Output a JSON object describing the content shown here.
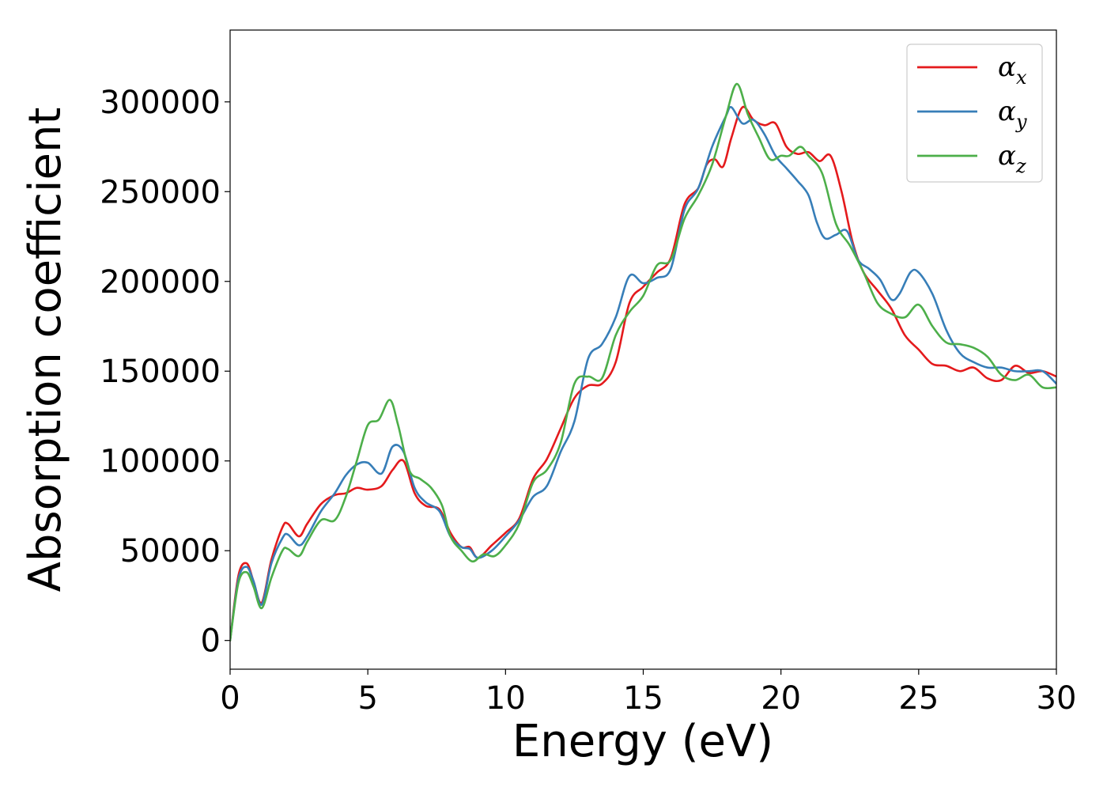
{
  "chart_data": {
    "type": "line",
    "title": "",
    "xlabel": "Energy (eV)",
    "ylabel": "Absorption coefficient",
    "xlim": [
      0,
      30
    ],
    "ylim": [
      -16000,
      340000
    ],
    "xticks": [
      0,
      5,
      10,
      15,
      20,
      25,
      30
    ],
    "yticks": [
      0,
      50000,
      100000,
      150000,
      200000,
      250000,
      300000
    ],
    "grid": false,
    "legend_position": "top-right",
    "series": [
      {
        "name": "α_x",
        "legend_base": "α",
        "legend_sub": "x",
        "color": "#e41a1c",
        "x": [
          0,
          0.3,
          0.6,
          0.85,
          1.15,
          1.5,
          1.9,
          2.1,
          2.5,
          2.8,
          3.3,
          3.8,
          4.2,
          4.6,
          5.0,
          5.5,
          5.9,
          6.3,
          6.7,
          7.1,
          7.6,
          8.0,
          8.4,
          8.7,
          9.0,
          9.5,
          10.0,
          10.5,
          11.0,
          11.5,
          12.0,
          12.5,
          13.0,
          13.5,
          14.0,
          14.5,
          15.0,
          15.5,
          16.0,
          16.5,
          17.0,
          17.3,
          17.6,
          17.9,
          18.2,
          18.6,
          19.0,
          19.4,
          19.8,
          20.2,
          20.6,
          21.0,
          21.4,
          21.8,
          22.2,
          22.6,
          23.0,
          23.5,
          24.0,
          24.5,
          25.0,
          25.5,
          26.0,
          26.5,
          27.0,
          27.5,
          28.0,
          28.5,
          29.0,
          29.5,
          30.0
        ],
        "y": [
          0,
          36000,
          43000,
          33000,
          21000,
          45000,
          63000,
          65000,
          58000,
          65000,
          76000,
          81000,
          82000,
          85000,
          84000,
          86000,
          95000,
          100000,
          82000,
          75000,
          73000,
          60000,
          52000,
          52000,
          46000,
          53000,
          60000,
          68000,
          90000,
          101000,
          118000,
          135000,
          142000,
          143000,
          155000,
          188000,
          197000,
          205000,
          213000,
          243000,
          252000,
          265000,
          268000,
          264000,
          280000,
          297000,
          290000,
          287000,
          288000,
          275000,
          271000,
          272000,
          267000,
          270000,
          250000,
          222000,
          205000,
          195000,
          185000,
          170000,
          162000,
          154000,
          153000,
          150000,
          152000,
          146000,
          145000,
          153000,
          149000,
          150000,
          147000
        ]
      },
      {
        "name": "α_y",
        "legend_base": "α",
        "legend_sub": "y",
        "color": "#377eb8",
        "x": [
          0,
          0.3,
          0.6,
          0.85,
          1.15,
          1.5,
          1.9,
          2.1,
          2.5,
          2.8,
          3.3,
          3.8,
          4.2,
          4.6,
          5.0,
          5.5,
          5.9,
          6.3,
          6.7,
          7.1,
          7.6,
          8.0,
          8.4,
          8.7,
          9.0,
          9.5,
          10.0,
          10.5,
          11.0,
          11.5,
          12.0,
          12.5,
          13.0,
          13.5,
          14.0,
          14.5,
          15.0,
          15.5,
          16.0,
          16.5,
          17.0,
          17.5,
          18.0,
          18.2,
          18.6,
          19.0,
          19.4,
          19.8,
          20.2,
          20.6,
          21.0,
          21.3,
          21.6,
          22.0,
          22.4,
          22.8,
          23.2,
          23.6,
          24.0,
          24.3,
          24.7,
          25.0,
          25.5,
          26.0,
          26.5,
          27.0,
          27.5,
          28.0,
          28.5,
          29.0,
          29.5,
          30.0
        ],
        "y": [
          0,
          34000,
          41000,
          33000,
          20000,
          43000,
          57000,
          59000,
          53000,
          58000,
          72000,
          82000,
          92000,
          98000,
          99000,
          93000,
          108000,
          105000,
          85000,
          77000,
          72000,
          58000,
          52000,
          51000,
          46000,
          50000,
          58000,
          67000,
          80000,
          86000,
          105000,
          122000,
          157000,
          165000,
          180000,
          203000,
          199000,
          202000,
          207000,
          240000,
          252000,
          275000,
          292000,
          297000,
          288000,
          290000,
          282000,
          270000,
          263000,
          256000,
          248000,
          233000,
          224000,
          226000,
          228000,
          212000,
          207000,
          201000,
          190000,
          193000,
          205000,
          205000,
          193000,
          173000,
          160000,
          155000,
          152000,
          152000,
          150000,
          150000,
          150000,
          143000
        ]
      },
      {
        "name": "α_z",
        "legend_base": "α",
        "legend_sub": "z",
        "color": "#4daf4a",
        "x": [
          0,
          0.3,
          0.6,
          0.85,
          1.15,
          1.5,
          1.9,
          2.1,
          2.5,
          2.8,
          3.3,
          3.8,
          4.2,
          4.6,
          5.0,
          5.4,
          5.8,
          6.1,
          6.5,
          6.9,
          7.3,
          7.7,
          8.0,
          8.4,
          8.8,
          9.2,
          9.6,
          10.0,
          10.5,
          11.0,
          11.5,
          12.0,
          12.5,
          13.0,
          13.5,
          14.0,
          14.5,
          15.0,
          15.5,
          16.0,
          16.5,
          17.0,
          17.5,
          18.0,
          18.4,
          18.8,
          19.2,
          19.6,
          20.0,
          20.3,
          20.7,
          21.0,
          21.5,
          22.0,
          22.5,
          23.0,
          23.5,
          24.0,
          24.5,
          25.0,
          25.5,
          26.0,
          26.5,
          27.0,
          27.5,
          28.0,
          28.5,
          29.0,
          29.5,
          30.0
        ],
        "y": [
          0,
          32000,
          38000,
          30000,
          18000,
          35000,
          50000,
          51000,
          47000,
          55000,
          67000,
          67000,
          80000,
          100000,
          120000,
          123000,
          134000,
          120000,
          95000,
          90000,
          85000,
          75000,
          58000,
          50000,
          44000,
          48000,
          47000,
          53000,
          65000,
          88000,
          95000,
          110000,
          143000,
          147000,
          146000,
          170000,
          183000,
          192000,
          209000,
          212000,
          235000,
          248000,
          265000,
          292000,
          310000,
          293000,
          280000,
          268000,
          270000,
          270000,
          275000,
          270000,
          260000,
          232000,
          220000,
          205000,
          188000,
          182000,
          180000,
          187000,
          175000,
          166000,
          165000,
          163000,
          158000,
          148000,
          145000,
          148000,
          141000,
          141000
        ]
      }
    ]
  }
}
